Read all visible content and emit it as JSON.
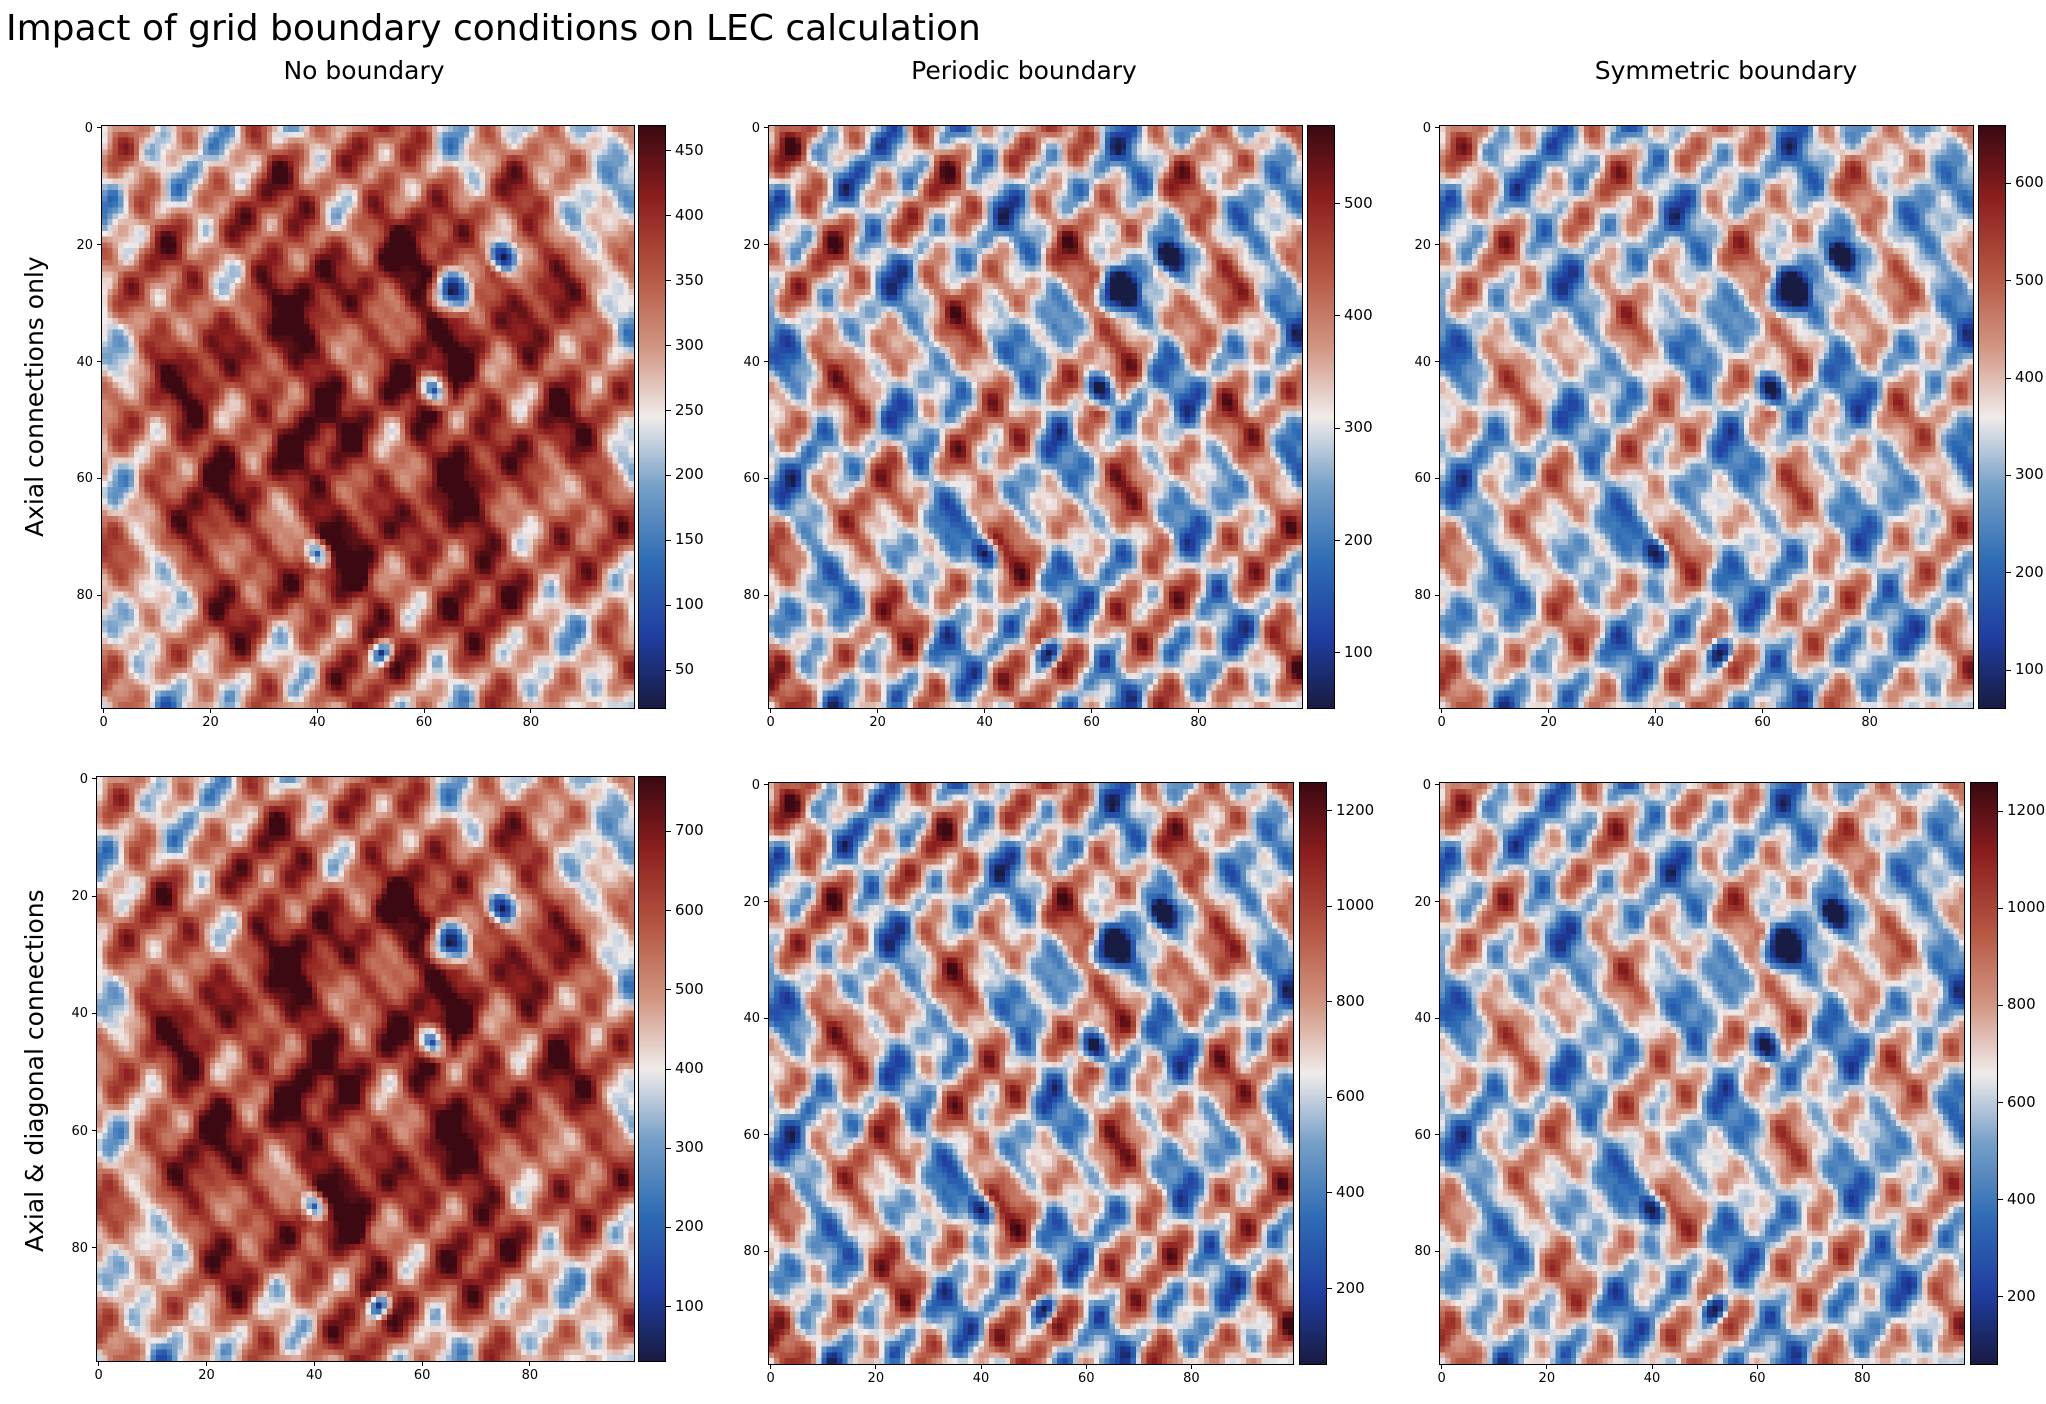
{
  "title": "Impact of grid boundary conditions on LEC calculation",
  "columns": [
    "No boundary",
    "Periodic boundary",
    "Symmetric boundary"
  ],
  "rows": [
    "Axial connections only",
    "Axial & diagonal connections"
  ],
  "chart_data": [
    {
      "type": "heatmap",
      "title": "No boundary",
      "row_label": "Axial connections only",
      "grid": [
        100,
        100
      ],
      "xticks": [
        "0",
        "20",
        "40",
        "60",
        "80"
      ],
      "yticks": [
        "0",
        "20",
        "40",
        "60",
        "80"
      ],
      "clim": [
        20,
        470
      ],
      "cbar_ticks": [
        "50",
        "100",
        "150",
        "200",
        "250",
        "300",
        "350",
        "400",
        "450"
      ],
      "colormap": "balance"
    },
    {
      "type": "heatmap",
      "title": "Periodic boundary",
      "row_label": "Axial connections only",
      "grid": [
        100,
        100
      ],
      "xticks": [
        "0",
        "20",
        "40",
        "60",
        "80"
      ],
      "yticks": [
        "0",
        "20",
        "40",
        "60",
        "80"
      ],
      "clim": [
        50,
        570
      ],
      "cbar_ticks": [
        "100",
        "200",
        "300",
        "400",
        "500"
      ],
      "colormap": "balance"
    },
    {
      "type": "heatmap",
      "title": "Symmetric boundary",
      "row_label": "Axial connections only",
      "grid": [
        100,
        100
      ],
      "xticks": [
        "0",
        "20",
        "40",
        "60",
        "80"
      ],
      "yticks": [
        "0",
        "20",
        "40",
        "60",
        "80"
      ],
      "clim": [
        60,
        660
      ],
      "cbar_ticks": [
        "100",
        "200",
        "300",
        "400",
        "500",
        "600"
      ],
      "colormap": "balance"
    },
    {
      "type": "heatmap",
      "title": "No boundary",
      "row_label": "Axial & diagonal connections",
      "grid": [
        100,
        100
      ],
      "xticks": [
        "0",
        "20",
        "40",
        "60",
        "80"
      ],
      "yticks": [
        "0",
        "20",
        "40",
        "60",
        "80"
      ],
      "clim": [
        30,
        770
      ],
      "cbar_ticks": [
        "100",
        "200",
        "300",
        "400",
        "500",
        "600",
        "700"
      ],
      "colormap": "balance"
    },
    {
      "type": "heatmap",
      "title": "Periodic boundary",
      "row_label": "Axial & diagonal connections",
      "grid": [
        100,
        100
      ],
      "xticks": [
        "0",
        "20",
        "40",
        "60",
        "80"
      ],
      "yticks": [
        "0",
        "20",
        "40",
        "60",
        "80"
      ],
      "clim": [
        40,
        1260
      ],
      "cbar_ticks": [
        "200",
        "400",
        "600",
        "800",
        "1000",
        "1200"
      ],
      "colormap": "balance"
    },
    {
      "type": "heatmap",
      "title": "Symmetric boundary",
      "row_label": "Axial & diagonal connections",
      "grid": [
        100,
        100
      ],
      "xticks": [
        "0",
        "20",
        "40",
        "60",
        "80"
      ],
      "yticks": [
        "0",
        "20",
        "40",
        "60",
        "80"
      ],
      "clim": [
        60,
        1260
      ],
      "cbar_ticks": [
        "200",
        "400",
        "600",
        "800",
        "1000",
        "1200"
      ],
      "colormap": "balance"
    }
  ]
}
